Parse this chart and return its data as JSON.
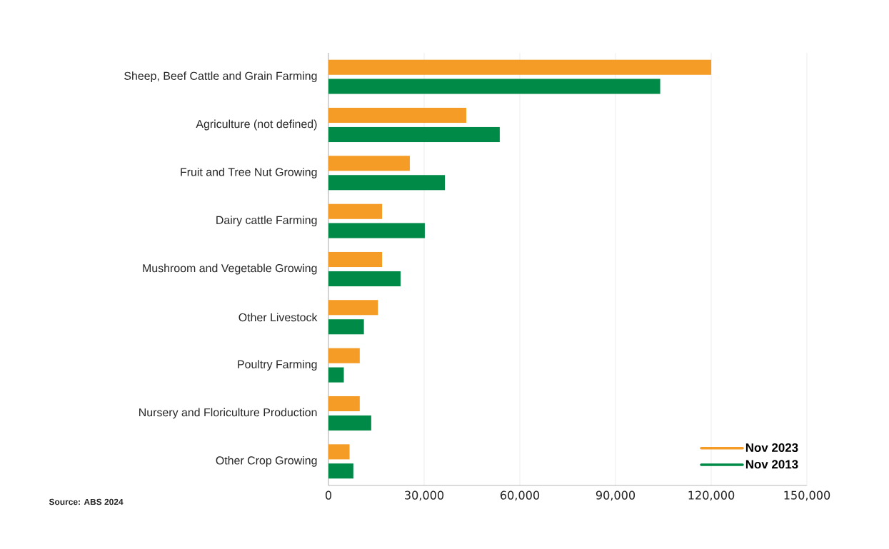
{
  "chart_data": {
    "type": "bar",
    "orientation": "horizontal",
    "categories": [
      "Sheep, Beef Cattle and Grain Farming",
      "Agriculture (not defined)",
      "Fruit and Tree Nut Growing",
      "Dairy cattle Farming",
      "Mushroom and Vegetable Growing",
      "Other Livestock",
      "Poultry Farming",
      "Nursery and Floriculture Production",
      "Other Crop Growing"
    ],
    "series": [
      {
        "name": "Nov 2023",
        "color": "#f49c26",
        "values": [
          120000,
          43200,
          25500,
          16800,
          16800,
          15500,
          9800,
          9800,
          6600
        ]
      },
      {
        "name": "Nov 2013",
        "color": "#008a47",
        "values": [
          104000,
          53700,
          36500,
          30200,
          22600,
          11100,
          4800,
          13400,
          7800
        ]
      }
    ],
    "xlim": [
      0,
      150000
    ],
    "xticks": [
      {
        "value": 0,
        "label": "0"
      },
      {
        "value": 30000,
        "label": "30,000"
      },
      {
        "value": 60000,
        "label": "60,000"
      },
      {
        "value": 90000,
        "label": "90,000"
      },
      {
        "value": 120000,
        "label": "120,000"
      },
      {
        "value": 150000,
        "label": "150,000"
      }
    ],
    "grid": "x",
    "legend": "bottom right",
    "annotations": [
      "Source: ABS 2024"
    ]
  }
}
